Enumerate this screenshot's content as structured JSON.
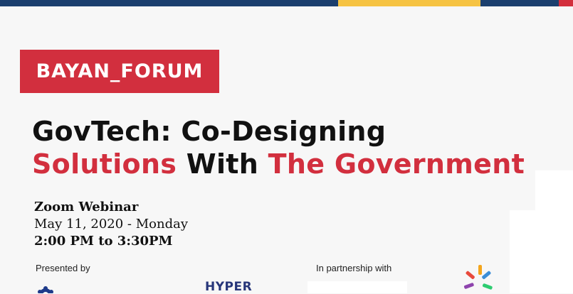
{
  "topbar": {
    "colors": {
      "navy": "#1b3f6e",
      "yellow": "#f6c343",
      "red": "#d32f3c"
    }
  },
  "badge": {
    "text": "BAYAN_FORUM",
    "color": "#d22f3e"
  },
  "title": {
    "line1": "GovTech: Co-Designing",
    "line2_part1": "Solutions",
    "line2_part2": " With ",
    "line2_part3": "The Government",
    "accent_color": "#d22f3e"
  },
  "event": {
    "platform": "Zoom Webinar",
    "date": "May 11, 2020 - Monday",
    "time": "2:00 PM to 3:30PM"
  },
  "sponsors": {
    "presented_by_label": "Presented by",
    "partnership_label": "In partnership with",
    "hyper_logo_text": "HYPER",
    "icons": [
      "gear-logo-icon",
      "pinwheel-logo-icon"
    ]
  }
}
